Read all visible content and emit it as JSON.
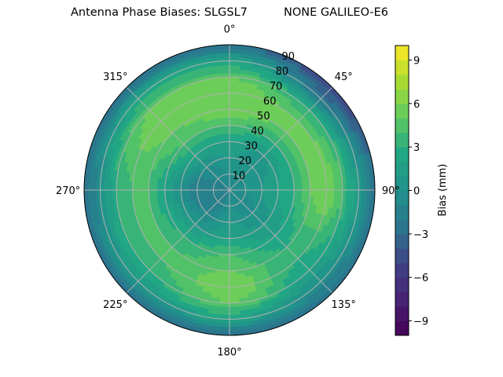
{
  "chart_data": {
    "type": "heatmap",
    "subtype": "polar-filled-contour",
    "title": "Antenna Phase Biases: SLGSL7          NONE GALILEO-E6",
    "colorbar_label": "Bias (mm)",
    "colormap": "viridis",
    "levels": {
      "min": -10,
      "max": 10,
      "step": 1
    },
    "colorbar_ticks": [
      "−9",
      "−6",
      "−3",
      "0",
      "3",
      "6",
      "9"
    ],
    "colorbar_tick_values": [
      -9,
      -6,
      -3,
      0,
      3,
      6,
      9
    ],
    "angle_ticks": [
      "0°",
      "45°",
      "90°",
      "135°",
      "180°",
      "225°",
      "270°",
      "315°"
    ],
    "angle_tick_values": [
      0,
      45,
      90,
      135,
      180,
      225,
      270,
      315
    ],
    "radial_ticks": [
      "10",
      "20",
      "30",
      "40",
      "50",
      "60",
      "70",
      "80",
      "90"
    ],
    "radial_tick_values": [
      10,
      20,
      30,
      40,
      50,
      60,
      70,
      80,
      90
    ],
    "theta_zero": "top",
    "theta_direction": "clockwise",
    "grid": true,
    "radius_range": [
      0,
      90
    ],
    "azimuth_samples": [
      0,
      45,
      90,
      135,
      180,
      225,
      270,
      315
    ],
    "radius_samples": [
      0,
      10,
      20,
      30,
      40,
      50,
      60,
      70,
      80,
      90
    ],
    "bias_grid_estimated": [
      [
        -1,
        -1,
        -1,
        -1,
        -1,
        -1,
        -1,
        -1
      ],
      [
        0,
        0,
        0,
        -1,
        0,
        -2,
        -2,
        -1
      ],
      [
        1,
        0,
        1,
        0,
        1,
        -1,
        -2,
        0
      ],
      [
        2,
        1,
        2,
        1,
        2,
        1,
        0,
        2
      ],
      [
        4,
        3,
        3,
        2,
        4,
        3,
        2,
        4
      ],
      [
        6,
        5,
        5,
        3,
        5,
        4,
        4,
        5
      ],
      [
        6,
        5,
        6,
        3,
        6,
        4,
        4,
        6
      ],
      [
        5,
        3,
        4,
        2,
        5,
        3,
        3,
        5
      ],
      [
        2,
        -2,
        1,
        0,
        2,
        1,
        0,
        2
      ],
      [
        -3,
        -5,
        -3,
        -3,
        -3,
        -3,
        -3,
        -3
      ]
    ]
  }
}
